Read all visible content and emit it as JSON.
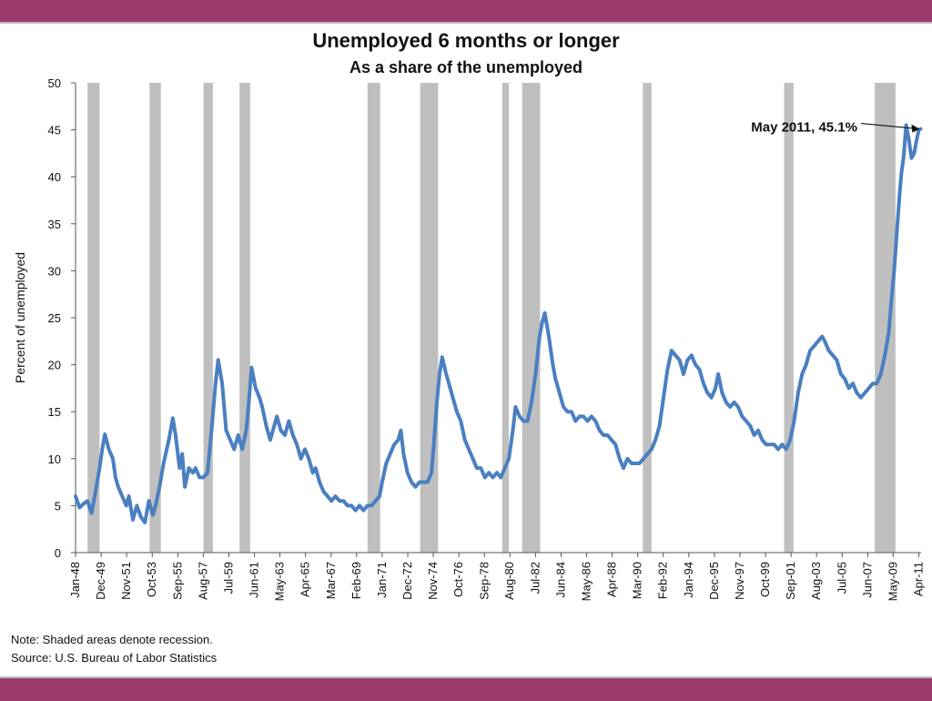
{
  "colors": {
    "band": "#9b3a6c",
    "line": "#4a7fc1",
    "recession": "#bfbfbf",
    "axis": "#555555"
  },
  "chart_data": {
    "type": "line",
    "title": "Unemployed 6 months or longer",
    "subtitle": "As a share of the unemployed",
    "xlabel": "",
    "ylabel": "Percent of unemployed",
    "x_range": [
      1948.0,
      2011.42
    ],
    "ylim": [
      0,
      50
    ],
    "y_ticks": [
      0,
      5,
      10,
      15,
      20,
      25,
      30,
      35,
      40,
      45,
      50
    ],
    "x_ticks": [
      {
        "label": "Jan-48",
        "t": 1948.0
      },
      {
        "label": "Dec-49",
        "t": 1949.92
      },
      {
        "label": "Nov-51",
        "t": 1951.83
      },
      {
        "label": "Oct-53",
        "t": 1953.75
      },
      {
        "label": "Sep-55",
        "t": 1955.67
      },
      {
        "label": "Aug-57",
        "t": 1957.58
      },
      {
        "label": "Jul-59",
        "t": 1959.5
      },
      {
        "label": "Jun-61",
        "t": 1961.42
      },
      {
        "label": "May-63",
        "t": 1963.33
      },
      {
        "label": "Apr-65",
        "t": 1965.25
      },
      {
        "label": "Mar-67",
        "t": 1967.17
      },
      {
        "label": "Feb-69",
        "t": 1969.08
      },
      {
        "label": "Jan-71",
        "t": 1971.0
      },
      {
        "label": "Dec-72",
        "t": 1972.92
      },
      {
        "label": "Nov-74",
        "t": 1974.83
      },
      {
        "label": "Oct-76",
        "t": 1976.75
      },
      {
        "label": "Sep-78",
        "t": 1978.67
      },
      {
        "label": "Aug-80",
        "t": 1980.58
      },
      {
        "label": "Jul-82",
        "t": 1982.5
      },
      {
        "label": "Jun-84",
        "t": 1984.42
      },
      {
        "label": "May-86",
        "t": 1986.33
      },
      {
        "label": "Apr-88",
        "t": 1988.25
      },
      {
        "label": "Mar-90",
        "t": 1990.17
      },
      {
        "label": "Feb-92",
        "t": 1992.08
      },
      {
        "label": "Jan-94",
        "t": 1994.0
      },
      {
        "label": "Dec-95",
        "t": 1995.92
      },
      {
        "label": "Nov-97",
        "t": 1997.83
      },
      {
        "label": "Oct-99",
        "t": 1999.75
      },
      {
        "label": "Sep-01",
        "t": 2001.67
      },
      {
        "label": "Aug-03",
        "t": 2003.58
      },
      {
        "label": "Jul-05",
        "t": 2005.5
      },
      {
        "label": "Jun-07",
        "t": 2007.42
      },
      {
        "label": "May-09",
        "t": 2009.33
      },
      {
        "label": "Apr-11",
        "t": 2011.25
      }
    ],
    "recessions": [
      [
        1948.9,
        1949.8
      ],
      [
        1953.55,
        1954.4
      ],
      [
        1957.6,
        1958.3
      ],
      [
        1960.3,
        1961.1
      ],
      [
        1969.9,
        1970.85
      ],
      [
        1973.85,
        1975.2
      ],
      [
        1980.0,
        1980.5
      ],
      [
        1981.5,
        1982.85
      ],
      [
        1990.55,
        1991.2
      ],
      [
        2001.15,
        2001.85
      ],
      [
        2007.95,
        2009.5
      ]
    ],
    "series": [
      {
        "values": [
          [
            1948.0,
            6.0
          ],
          [
            1948.3,
            4.8
          ],
          [
            1948.6,
            5.2
          ],
          [
            1948.9,
            5.5
          ],
          [
            1949.2,
            4.2
          ],
          [
            1949.5,
            6.5
          ],
          [
            1949.8,
            9.0
          ],
          [
            1950.0,
            11.0
          ],
          [
            1950.2,
            12.6
          ],
          [
            1950.5,
            11.0
          ],
          [
            1950.8,
            10.0
          ],
          [
            1951.0,
            8.0
          ],
          [
            1951.2,
            7.0
          ],
          [
            1951.5,
            6.0
          ],
          [
            1951.8,
            5.0
          ],
          [
            1952.0,
            6.0
          ],
          [
            1952.3,
            3.5
          ],
          [
            1952.6,
            5.0
          ],
          [
            1952.9,
            3.8
          ],
          [
            1953.2,
            3.2
          ],
          [
            1953.5,
            5.5
          ],
          [
            1953.8,
            4.0
          ],
          [
            1954.0,
            5.0
          ],
          [
            1954.3,
            7.0
          ],
          [
            1954.6,
            9.5
          ],
          [
            1955.0,
            12.0
          ],
          [
            1955.3,
            14.3
          ],
          [
            1955.5,
            12.5
          ],
          [
            1955.8,
            9.0
          ],
          [
            1956.0,
            10.5
          ],
          [
            1956.2,
            7.0
          ],
          [
            1956.5,
            9.0
          ],
          [
            1956.8,
            8.5
          ],
          [
            1957.0,
            9.0
          ],
          [
            1957.3,
            8.0
          ],
          [
            1957.6,
            8.0
          ],
          [
            1957.9,
            8.5
          ],
          [
            1958.2,
            13.0
          ],
          [
            1958.5,
            18.0
          ],
          [
            1958.7,
            20.5
          ],
          [
            1959.0,
            18.0
          ],
          [
            1959.3,
            13.0
          ],
          [
            1959.6,
            12.0
          ],
          [
            1959.9,
            11.0
          ],
          [
            1960.2,
            12.5
          ],
          [
            1960.5,
            11.0
          ],
          [
            1960.8,
            13.0
          ],
          [
            1961.0,
            16.0
          ],
          [
            1961.2,
            19.7
          ],
          [
            1961.5,
            17.5
          ],
          [
            1961.8,
            16.5
          ],
          [
            1962.0,
            15.5
          ],
          [
            1962.3,
            13.5
          ],
          [
            1962.6,
            12.0
          ],
          [
            1962.9,
            13.5
          ],
          [
            1963.1,
            14.5
          ],
          [
            1963.4,
            13.0
          ],
          [
            1963.7,
            12.5
          ],
          [
            1964.0,
            14.0
          ],
          [
            1964.3,
            12.5
          ],
          [
            1964.6,
            11.5
          ],
          [
            1964.9,
            10.0
          ],
          [
            1965.2,
            11.0
          ],
          [
            1965.5,
            10.0
          ],
          [
            1965.8,
            8.5
          ],
          [
            1966.0,
            9.0
          ],
          [
            1966.3,
            7.5
          ],
          [
            1966.6,
            6.5
          ],
          [
            1966.9,
            6.0
          ],
          [
            1967.2,
            5.5
          ],
          [
            1967.5,
            6.0
          ],
          [
            1967.8,
            5.5
          ],
          [
            1968.1,
            5.5
          ],
          [
            1968.4,
            5.0
          ],
          [
            1968.7,
            5.0
          ],
          [
            1969.0,
            4.5
          ],
          [
            1969.3,
            5.0
          ],
          [
            1969.6,
            4.5
          ],
          [
            1969.9,
            5.0
          ],
          [
            1970.2,
            5.0
          ],
          [
            1970.5,
            5.5
          ],
          [
            1970.8,
            6.0
          ],
          [
            1971.0,
            7.5
          ],
          [
            1971.3,
            9.5
          ],
          [
            1971.6,
            10.5
          ],
          [
            1971.9,
            11.5
          ],
          [
            1972.2,
            12.0
          ],
          [
            1972.4,
            13.0
          ],
          [
            1972.6,
            10.5
          ],
          [
            1972.9,
            8.5
          ],
          [
            1973.2,
            7.5
          ],
          [
            1973.5,
            7.0
          ],
          [
            1973.8,
            7.5
          ],
          [
            1974.1,
            7.5
          ],
          [
            1974.4,
            7.5
          ],
          [
            1974.7,
            8.5
          ],
          [
            1974.9,
            12.0
          ],
          [
            1975.1,
            16.0
          ],
          [
            1975.3,
            19.0
          ],
          [
            1975.5,
            20.8
          ],
          [
            1975.8,
            19.0
          ],
          [
            1976.0,
            18.0
          ],
          [
            1976.3,
            16.5
          ],
          [
            1976.6,
            15.0
          ],
          [
            1976.9,
            14.0
          ],
          [
            1977.2,
            12.0
          ],
          [
            1977.5,
            11.0
          ],
          [
            1977.8,
            10.0
          ],
          [
            1978.1,
            9.0
          ],
          [
            1978.4,
            9.0
          ],
          [
            1978.7,
            8.0
          ],
          [
            1979.0,
            8.5
          ],
          [
            1979.3,
            8.0
          ],
          [
            1979.6,
            8.5
          ],
          [
            1979.9,
            8.0
          ],
          [
            1980.2,
            9.0
          ],
          [
            1980.5,
            10.0
          ],
          [
            1980.8,
            13.0
          ],
          [
            1981.0,
            15.5
          ],
          [
            1981.3,
            14.5
          ],
          [
            1981.6,
            14.0
          ],
          [
            1981.9,
            14.0
          ],
          [
            1982.2,
            16.0
          ],
          [
            1982.5,
            19.0
          ],
          [
            1982.8,
            23.0
          ],
          [
            1983.0,
            24.5
          ],
          [
            1983.2,
            25.5
          ],
          [
            1983.5,
            23.0
          ],
          [
            1983.8,
            20.0
          ],
          [
            1984.0,
            18.5
          ],
          [
            1984.3,
            17.0
          ],
          [
            1984.6,
            15.5
          ],
          [
            1984.9,
            15.0
          ],
          [
            1985.2,
            15.0
          ],
          [
            1985.5,
            14.0
          ],
          [
            1985.8,
            14.5
          ],
          [
            1986.1,
            14.5
          ],
          [
            1986.4,
            14.0
          ],
          [
            1986.7,
            14.5
          ],
          [
            1987.0,
            14.0
          ],
          [
            1987.3,
            13.0
          ],
          [
            1987.6,
            12.5
          ],
          [
            1987.9,
            12.5
          ],
          [
            1988.2,
            12.0
          ],
          [
            1988.5,
            11.5
          ],
          [
            1988.8,
            10.0
          ],
          [
            1989.1,
            9.0
          ],
          [
            1989.4,
            10.0
          ],
          [
            1989.7,
            9.5
          ],
          [
            1990.0,
            9.5
          ],
          [
            1990.3,
            9.5
          ],
          [
            1990.6,
            10.0
          ],
          [
            1990.9,
            10.5
          ],
          [
            1991.2,
            11.0
          ],
          [
            1991.5,
            12.0
          ],
          [
            1991.8,
            13.5
          ],
          [
            1992.1,
            16.5
          ],
          [
            1992.4,
            19.5
          ],
          [
            1992.7,
            21.5
          ],
          [
            1993.0,
            21.0
          ],
          [
            1993.3,
            20.5
          ],
          [
            1993.6,
            19.0
          ],
          [
            1993.9,
            20.5
          ],
          [
            1994.2,
            21.0
          ],
          [
            1994.5,
            20.0
          ],
          [
            1994.8,
            19.5
          ],
          [
            1995.1,
            18.0
          ],
          [
            1995.4,
            17.0
          ],
          [
            1995.7,
            16.5
          ],
          [
            1996.0,
            17.5
          ],
          [
            1996.2,
            19.0
          ],
          [
            1996.5,
            17.0
          ],
          [
            1996.8,
            16.0
          ],
          [
            1997.1,
            15.5
          ],
          [
            1997.4,
            16.0
          ],
          [
            1997.7,
            15.5
          ],
          [
            1998.0,
            14.5
          ],
          [
            1998.3,
            14.0
          ],
          [
            1998.6,
            13.5
          ],
          [
            1998.9,
            12.5
          ],
          [
            1999.2,
            13.0
          ],
          [
            1999.5,
            12.0
          ],
          [
            1999.8,
            11.5
          ],
          [
            2000.1,
            11.5
          ],
          [
            2000.4,
            11.5
          ],
          [
            2000.7,
            11.0
          ],
          [
            2001.0,
            11.5
          ],
          [
            2001.3,
            11.0
          ],
          [
            2001.6,
            12.0
          ],
          [
            2001.9,
            14.0
          ],
          [
            2002.2,
            17.0
          ],
          [
            2002.5,
            19.0
          ],
          [
            2002.8,
            20.0
          ],
          [
            2003.1,
            21.5
          ],
          [
            2003.4,
            22.0
          ],
          [
            2003.7,
            22.5
          ],
          [
            2004.0,
            23.0
          ],
          [
            2004.2,
            22.5
          ],
          [
            2004.5,
            21.5
          ],
          [
            2004.8,
            21.0
          ],
          [
            2005.1,
            20.5
          ],
          [
            2005.4,
            19.0
          ],
          [
            2005.7,
            18.5
          ],
          [
            2006.0,
            17.5
          ],
          [
            2006.3,
            18.0
          ],
          [
            2006.6,
            17.0
          ],
          [
            2006.9,
            16.5
          ],
          [
            2007.2,
            17.0
          ],
          [
            2007.5,
            17.5
          ],
          [
            2007.8,
            18.0
          ],
          [
            2008.1,
            18.0
          ],
          [
            2008.4,
            19.0
          ],
          [
            2008.7,
            21.0
          ],
          [
            2009.0,
            23.5
          ],
          [
            2009.2,
            27.0
          ],
          [
            2009.4,
            30.0
          ],
          [
            2009.6,
            34.0
          ],
          [
            2009.8,
            38.0
          ],
          [
            2009.95,
            40.5
          ],
          [
            2010.1,
            42.0
          ],
          [
            2010.3,
            45.5
          ],
          [
            2010.5,
            44.0
          ],
          [
            2010.7,
            42.0
          ],
          [
            2010.9,
            42.5
          ],
          [
            2011.1,
            44.0
          ],
          [
            2011.25,
            45.0
          ],
          [
            2011.38,
            45.1
          ]
        ]
      }
    ],
    "annotations": [
      {
        "label": "May 2011, 45.1%",
        "target": [
          2011.38,
          45.1
        ]
      }
    ]
  },
  "notes": {
    "note": "Note: Shaded areas denote recession.",
    "source": "Source: U.S. Bureau of Labor Statistics"
  }
}
